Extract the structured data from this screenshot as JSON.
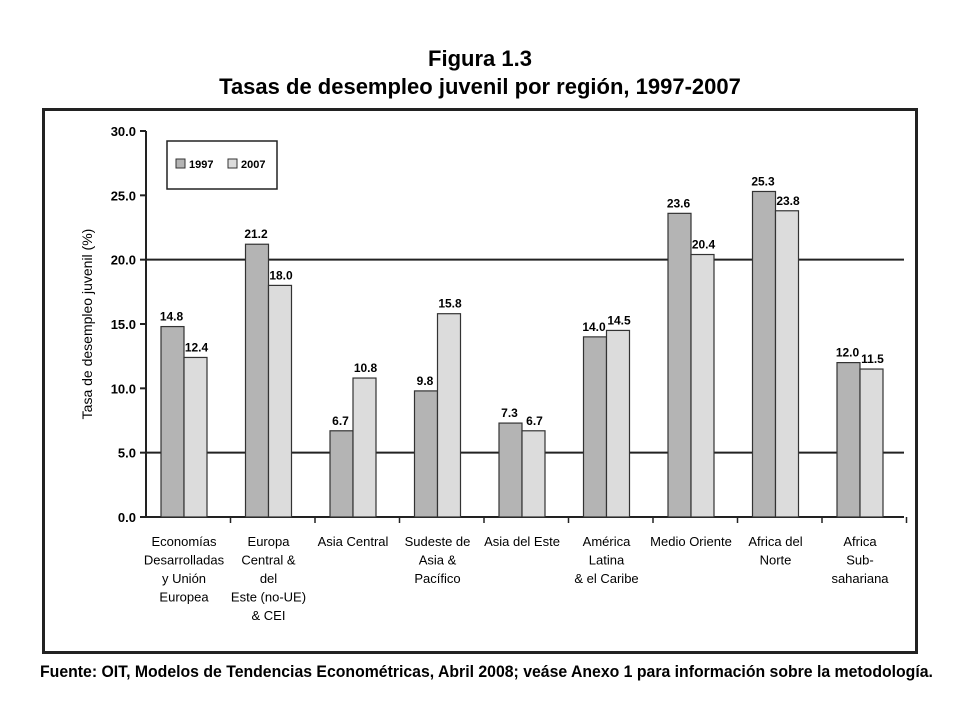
{
  "figure_label": "Figura 1.3",
  "title": "Tasas de desempleo juvenil por región, 1997-2007",
  "source_note": "Fuente: OIT, Modelos de Tendencias Econométricas, Abril 2008; veáse Anexo 1 para información sobre la metodología.",
  "chart_data": {
    "type": "bar",
    "title": "Tasas de desempleo juvenil por región, 1997-2007",
    "ylabel": "Tasa de desempleo juvenil (%)",
    "xlabel": "",
    "ylim": [
      0,
      30
    ],
    "yticks": [
      "0.0",
      "5.0",
      "10.0",
      "15.0",
      "20.0",
      "25.0",
      "30.0"
    ],
    "gridlines": [
      5,
      20
    ],
    "legend_position": "top-left",
    "categories": [
      [
        "Economías",
        "Desarrolladas",
        "y Unión",
        "Europea"
      ],
      [
        "Europa",
        "Central &",
        "del",
        "Este (no-UE)",
        "& CEI"
      ],
      [
        "Asia Central"
      ],
      [
        "Sudeste de",
        "Asia &",
        "Pacífico"
      ],
      [
        "Asia del Este"
      ],
      [
        "América",
        "Latina",
        "& el Caribe"
      ],
      [
        "Medio Oriente"
      ],
      [
        "Africa del",
        "Norte"
      ],
      [
        "Africa",
        "Sub-",
        "sahariana"
      ]
    ],
    "series": [
      {
        "name": "1997",
        "color": "#b4b4b4",
        "values": [
          14.8,
          21.2,
          6.7,
          9.8,
          7.3,
          14.0,
          23.6,
          25.3,
          12.0
        ],
        "labels": [
          "14.8",
          "21.2",
          "6.7",
          "9.8",
          "7.3",
          "14.0",
          "23.6",
          "25.3",
          "12.0"
        ]
      },
      {
        "name": "2007",
        "color": "#dcdcdc",
        "values": [
          12.4,
          18.0,
          10.8,
          15.8,
          6.7,
          14.5,
          20.4,
          23.8,
          11.5
        ],
        "labels": [
          "12.4",
          "18.0",
          "10.8",
          "15.8",
          "6.7",
          "14.5",
          "20.4",
          "23.8",
          "11.5"
        ]
      }
    ]
  }
}
